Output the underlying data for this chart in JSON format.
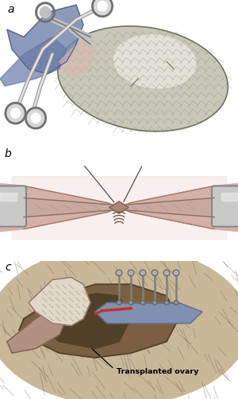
{
  "panel_labels": [
    "a",
    "b",
    "c"
  ],
  "annotation_text": "Transplanted ovary",
  "background_color": "#ffffff",
  "fig_width": 3.0,
  "fig_height": 5.03,
  "dpi": 100,
  "colors": {
    "ovary_fill": "#c8c8b8",
    "ovary_edge": "#707060",
    "ovary_highlight": "#e8e8e0",
    "blue_tissue": "#8898b8",
    "blue_tissue_edge": "#506080",
    "clamp_fill": "#c0c0c0",
    "clamp_edge": "#707070",
    "clamp_dark": "#909090",
    "vessel_pink": "#d4b8b8",
    "vessel_edge": "#907070",
    "vessel_shadow": "#c0a0a0",
    "tissue_bg": "#e8d0c8",
    "knot_fill": "#c09080",
    "knot_edge": "#806050",
    "suture": "#606060",
    "retractor_fill": "#c8c8c8",
    "retractor_edge": "#808080",
    "skin_bg": "#d4c0a0",
    "skin_dark": "#a08060",
    "hair": "#706050",
    "wound_dark": "#806850",
    "vessel_blue": "#8090b0",
    "vessel_blue_edge": "#607090",
    "red_suture": "#c03030",
    "label_color": "#000000",
    "line_color": "#404040"
  }
}
